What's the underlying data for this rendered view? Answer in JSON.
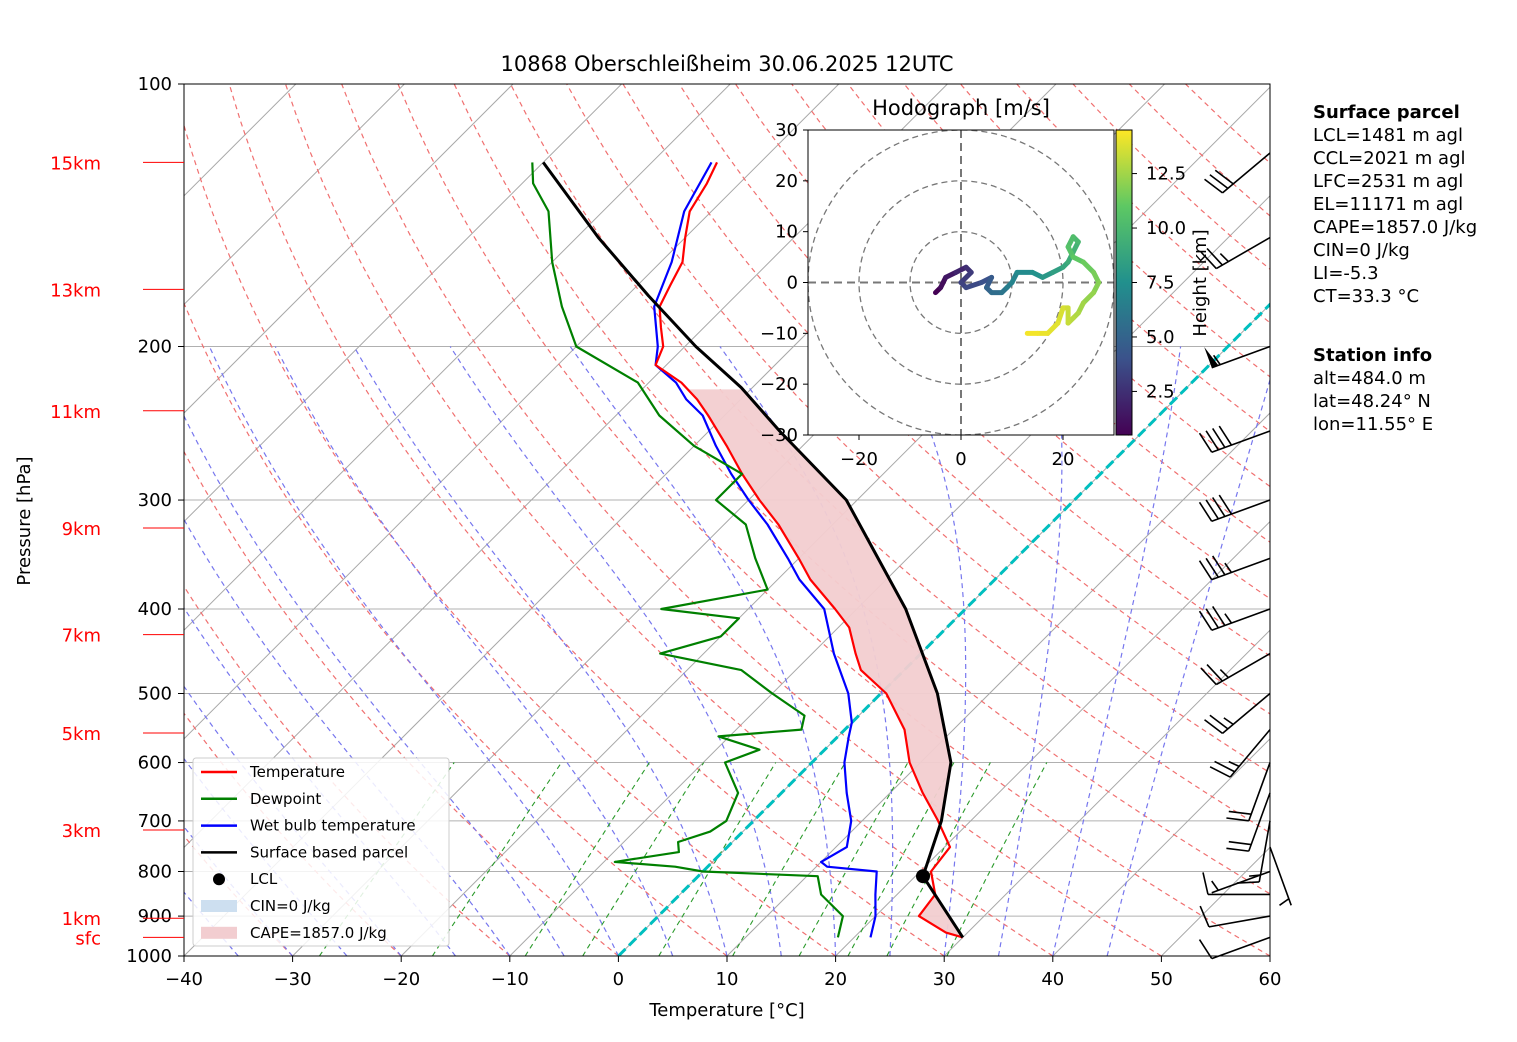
{
  "chart_data": {
    "type": "skew-t log-p",
    "title": "10868 Oberschleißheim 30.06.2025 12UTC",
    "xlabel": "Temperature [°C]",
    "ylabel": "Pressure [hPa]",
    "xlim": [
      -40,
      60
    ],
    "ylim": [
      1000,
      100
    ],
    "log_pressure": true,
    "skew": true,
    "x_ticks": [
      "−40",
      "−30",
      "−20",
      "−10",
      "0",
      "10",
      "20",
      "30",
      "40",
      "50",
      "60"
    ],
    "x_tick_values": [
      -40,
      -30,
      -20,
      -10,
      0,
      10,
      20,
      30,
      40,
      50,
      60
    ],
    "y_ticks": [
      "1000",
      "900",
      "800",
      "700",
      "600",
      "500",
      "400",
      "300",
      "200",
      "100"
    ],
    "y_tick_values": [
      1000,
      900,
      800,
      700,
      600,
      500,
      400,
      300,
      200,
      100
    ],
    "height_labels": [
      {
        "label": "sfc",
        "p": 952
      },
      {
        "label": "1km",
        "p": 905
      },
      {
        "label": "3km",
        "p": 717
      },
      {
        "label": "5km",
        "p": 555
      },
      {
        "label": "7km",
        "p": 428
      },
      {
        "label": "9km",
        "p": 323
      },
      {
        "label": "11km",
        "p": 237
      },
      {
        "label": "13km",
        "p": 172
      },
      {
        "label": "15km",
        "p": 123
      }
    ],
    "height_label_color": "#ff0000",
    "series": [
      {
        "name": "Temperature",
        "color": "#ff0000",
        "points": [
          [
            952,
            30.0
          ],
          [
            940,
            28.0
          ],
          [
            900,
            24.0
          ],
          [
            850,
            23.5
          ],
          [
            800,
            21.0
          ],
          [
            750,
            20.5
          ],
          [
            700,
            17.0
          ],
          [
            650,
            13.0
          ],
          [
            600,
            9.0
          ],
          [
            550,
            5.5
          ],
          [
            500,
            0.5
          ],
          [
            470,
            -4.0
          ],
          [
            450,
            -6.0
          ],
          [
            420,
            -9.0
          ],
          [
            400,
            -12.0
          ],
          [
            370,
            -17.0
          ],
          [
            350,
            -20.0
          ],
          [
            320,
            -25.0
          ],
          [
            300,
            -29.0
          ],
          [
            280,
            -33.0
          ],
          [
            260,
            -37.0
          ],
          [
            240,
            -41.5
          ],
          [
            230,
            -44.0
          ],
          [
            220,
            -47.0
          ],
          [
            210,
            -51.0
          ],
          [
            200,
            -52.0
          ],
          [
            190,
            -54.0
          ],
          [
            180,
            -56.0
          ],
          [
            170,
            -57.0
          ],
          [
            160,
            -58.0
          ],
          [
            150,
            -60.0
          ],
          [
            140,
            -62.0
          ],
          [
            130,
            -63.0
          ],
          [
            123,
            -64.0
          ]
        ]
      },
      {
        "name": "Dewpoint",
        "color": "#008000",
        "points": [
          [
            952,
            18.5
          ],
          [
            900,
            17.0
          ],
          [
            850,
            13.0
          ],
          [
            810,
            11.0
          ],
          [
            800,
            0.0
          ],
          [
            790,
            -3.0
          ],
          [
            780,
            -9.0
          ],
          [
            760,
            -4.0
          ],
          [
            740,
            -5.0
          ],
          [
            720,
            -3.0
          ],
          [
            700,
            -2.5
          ],
          [
            650,
            -4.0
          ],
          [
            600,
            -8.0
          ],
          [
            580,
            -6.0
          ],
          [
            560,
            -11.0
          ],
          [
            550,
            -4.0
          ],
          [
            530,
            -5.0
          ],
          [
            500,
            -10.0
          ],
          [
            470,
            -15.0
          ],
          [
            450,
            -24.0
          ],
          [
            430,
            -20.0
          ],
          [
            410,
            -20.0
          ],
          [
            400,
            -28.0
          ],
          [
            380,
            -20.0
          ],
          [
            350,
            -24.0
          ],
          [
            320,
            -28.0
          ],
          [
            300,
            -33.0
          ],
          [
            280,
            -33.0
          ],
          [
            260,
            -40.0
          ],
          [
            240,
            -46.0
          ],
          [
            220,
            -51.0
          ],
          [
            200,
            -60.0
          ],
          [
            180,
            -65.0
          ],
          [
            160,
            -70.0
          ],
          [
            140,
            -75.0
          ],
          [
            130,
            -79.0
          ],
          [
            123,
            -81.0
          ]
        ]
      },
      {
        "name": "Wet bulb temperature",
        "color": "#0000ff",
        "points": [
          [
            952,
            21.5
          ],
          [
            900,
            20.0
          ],
          [
            850,
            18.0
          ],
          [
            800,
            16.0
          ],
          [
            790,
            11.0
          ],
          [
            780,
            10.0
          ],
          [
            750,
            11.0
          ],
          [
            700,
            9.0
          ],
          [
            650,
            6.0
          ],
          [
            600,
            3.0
          ],
          [
            560,
            1.0
          ],
          [
            540,
            0.0
          ],
          [
            500,
            -3.0
          ],
          [
            450,
            -8.0
          ],
          [
            400,
            -13.0
          ],
          [
            370,
            -18.0
          ],
          [
            350,
            -21.0
          ],
          [
            320,
            -26.0
          ],
          [
            300,
            -30.0
          ],
          [
            280,
            -34.0
          ],
          [
            260,
            -38.0
          ],
          [
            240,
            -42.0
          ],
          [
            230,
            -45.0
          ],
          [
            220,
            -47.5
          ],
          [
            210,
            -51.0
          ],
          [
            200,
            -52.5
          ],
          [
            180,
            -56.5
          ],
          [
            160,
            -59.0
          ],
          [
            140,
            -62.5
          ],
          [
            123,
            -64.5
          ]
        ]
      },
      {
        "name": "Surface based parcel",
        "color": "#000000",
        "points": [
          [
            952,
            30.0
          ],
          [
            810,
            20.7
          ],
          [
            700,
            17.3
          ],
          [
            600,
            12.8
          ],
          [
            500,
            5.2
          ],
          [
            400,
            -5.5
          ],
          [
            300,
            -21.0
          ],
          [
            250,
            -33.5
          ],
          [
            223,
            -41.0
          ],
          [
            200,
            -49.0
          ],
          [
            175,
            -58.0
          ],
          [
            150,
            -68.0
          ],
          [
            123,
            -80.0
          ]
        ]
      }
    ],
    "lcl": {
      "name": "LCL",
      "p": 810,
      "t": 20.7
    },
    "cin_label": "CIN=0 J/kg",
    "cape_label": "CAPE=1857.0 J/kg",
    "cape_color": "#f2cdd0",
    "cin_color": "#cddff0",
    "zero_isotherm_color": "#00bfbf",
    "legend": {
      "position": "lower-left"
    },
    "wind_barbs": [
      {
        "p": 952,
        "dir": 250,
        "speed": 10
      },
      {
        "p": 900,
        "dir": 260,
        "speed": 10
      },
      {
        "p": 850,
        "dir": 270,
        "speed": 10
      },
      {
        "p": 800,
        "dir": 250,
        "speed": 5
      },
      {
        "p": 750,
        "dir": 160,
        "speed": 5
      },
      {
        "p": 700,
        "dir": 190,
        "speed": 15
      },
      {
        "p": 650,
        "dir": 200,
        "speed": 20
      },
      {
        "p": 600,
        "dir": 200,
        "speed": 20
      },
      {
        "p": 550,
        "dir": 220,
        "speed": 25
      },
      {
        "p": 500,
        "dir": 230,
        "speed": 25
      },
      {
        "p": 450,
        "dir": 240,
        "speed": 25
      },
      {
        "p": 400,
        "dir": 250,
        "speed": 35
      },
      {
        "p": 350,
        "dir": 250,
        "speed": 35
      },
      {
        "p": 300,
        "dir": 250,
        "speed": 40
      },
      {
        "p": 250,
        "dir": 250,
        "speed": 40
      },
      {
        "p": 200,
        "dir": 250,
        "speed": 55
      },
      {
        "p": 150,
        "dir": 240,
        "speed": 25
      },
      {
        "p": 120,
        "dir": 230,
        "speed": 30
      }
    ],
    "hodograph": {
      "title": "Hodograph [m/s]",
      "xlim": [
        -30,
        30
      ],
      "ylim": [
        -30,
        30
      ],
      "ticks": [
        "−30",
        "−20",
        "−10",
        "0",
        "10",
        "20",
        "30"
      ],
      "tick_values": [
        -30,
        -20,
        -10,
        0,
        10,
        20,
        30
      ],
      "x_ticks": [
        "−20",
        "0",
        "20"
      ],
      "x_tick_values": [
        -20,
        0,
        20
      ],
      "rings": [
        10,
        20,
        30
      ],
      "colorbar": {
        "label": "Height [km]",
        "ticks": [
          "2.5",
          "5.0",
          "7.5",
          "10.0",
          "12.5"
        ],
        "tick_values": [
          2.5,
          5.0,
          7.5,
          10.0,
          12.5
        ],
        "range": [
          0.5,
          14.5
        ]
      },
      "trace": [
        [
          -5,
          -2,
          0.5
        ],
        [
          -4,
          -1,
          1.0
        ],
        [
          -3,
          1,
          1.5
        ],
        [
          -1,
          2,
          2.0
        ],
        [
          1,
          3,
          2.5
        ],
        [
          2,
          2,
          3.0
        ],
        [
          0,
          0,
          3.3
        ],
        [
          1,
          -1,
          3.6
        ],
        [
          4,
          0,
          4.0
        ],
        [
          6,
          1,
          4.5
        ],
        [
          5,
          -1,
          5.0
        ],
        [
          6,
          -2,
          5.5
        ],
        [
          8,
          -2,
          6.0
        ],
        [
          9,
          -1,
          6.5
        ],
        [
          10,
          0,
          6.8
        ],
        [
          11,
          2,
          7.2
        ],
        [
          14,
          2,
          7.6
        ],
        [
          16,
          1,
          8.0
        ],
        [
          18,
          2,
          8.4
        ],
        [
          20,
          3,
          8.8
        ],
        [
          21,
          4,
          9.2
        ],
        [
          22,
          6,
          9.6
        ],
        [
          23,
          8,
          10.0
        ],
        [
          22,
          9,
          10.3
        ],
        [
          21,
          7,
          10.6
        ],
        [
          22,
          5,
          11.0
        ],
        [
          24,
          4,
          11.3
        ],
        [
          26,
          2,
          11.6
        ],
        [
          27,
          0,
          11.9
        ],
        [
          26,
          -2,
          12.2
        ],
        [
          24,
          -4,
          12.5
        ],
        [
          23,
          -6,
          12.8
        ],
        [
          22,
          -7,
          13.0
        ],
        [
          21,
          -8,
          13.3
        ],
        [
          21,
          -5,
          13.5
        ],
        [
          20,
          -5,
          13.7
        ],
        [
          19,
          -8,
          13.9
        ],
        [
          17,
          -10,
          14.1
        ],
        [
          15,
          -10,
          14.3
        ],
        [
          13,
          -10,
          14.5
        ]
      ]
    }
  },
  "surface_parcel": {
    "heading": "Surface parcel",
    "lines": [
      "LCL=1481 m agl",
      "CCL=2021 m agl",
      "LFC=2531 m agl",
      "EL=11171 m agl",
      "CAPE=1857.0 J/kg",
      "CIN=0 J/kg",
      "LI=-5.3",
      "CT=33.3 °C"
    ]
  },
  "station_info": {
    "heading": "Station info",
    "lines": [
      "alt=484.0 m",
      "lat=48.24° N",
      "lon=11.55° E"
    ]
  }
}
